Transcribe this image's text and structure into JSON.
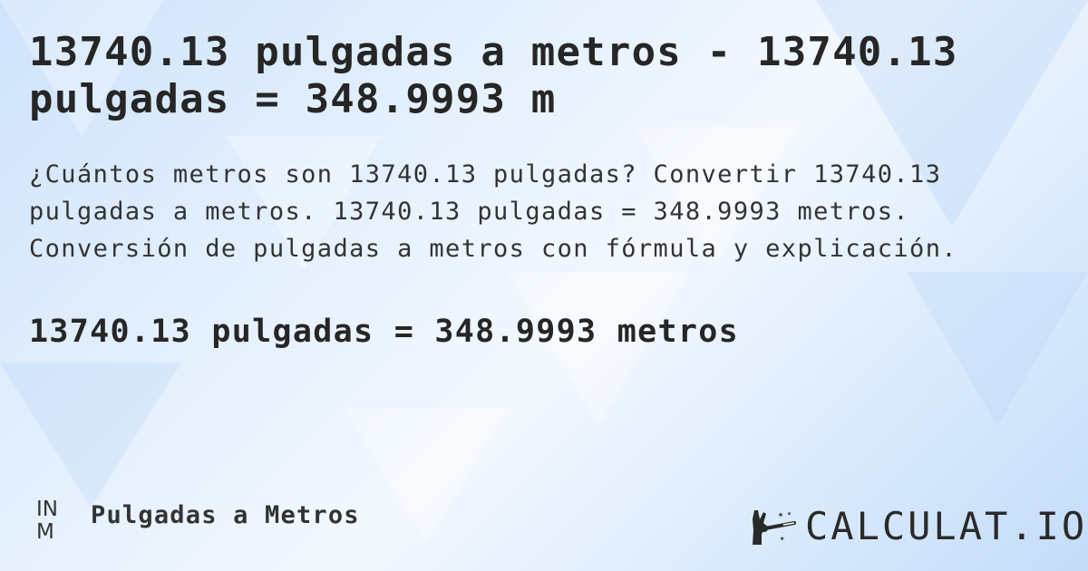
{
  "title": "13740.13 pulgadas a metros - 13740.13 pulgadas = 348.9993 m",
  "description": "¿Cuántos metros son 13740.13 pulgadas? Convertir 13740.13 pulgadas a metros. 13740.13 pulgadas = 348.9993 metros. Conversión de pulgadas a metros con fórmula y explicación.",
  "result": "13740.13 pulgadas = 348.9993 metros",
  "footer": {
    "icon_top": "IN",
    "icon_bottom": "M",
    "label": "Pulgadas a Metros"
  },
  "logo": {
    "text": "CALCULAT.IO",
    "icon": "magic-hand-wand-icon"
  },
  "colors": {
    "text": "#262626",
    "background": "#dbeafc"
  }
}
